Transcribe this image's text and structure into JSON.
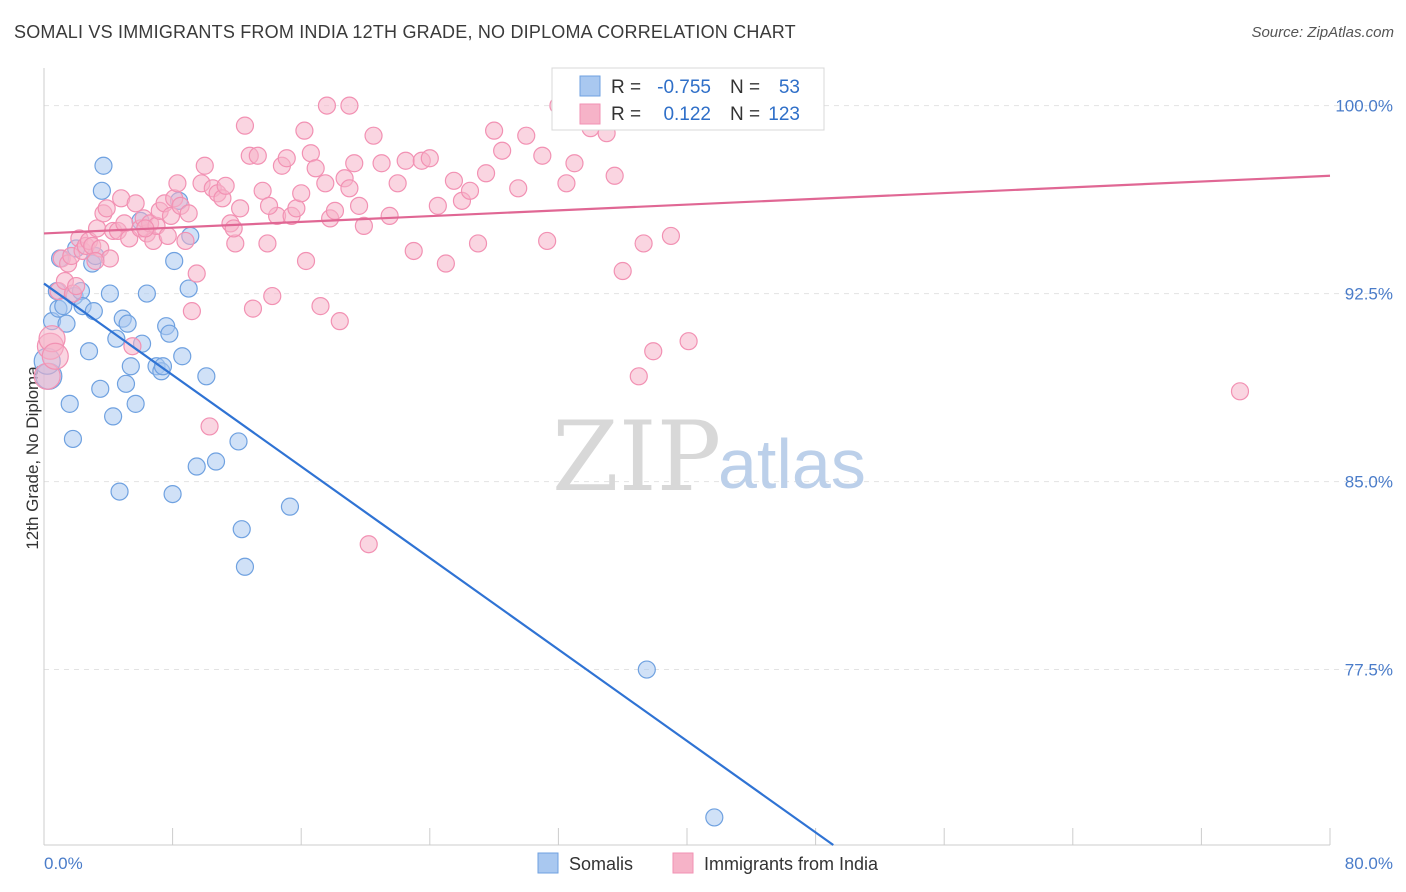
{
  "header": {
    "title": "SOMALI VS IMMIGRANTS FROM INDIA 12TH GRADE, NO DIPLOMA CORRELATION CHART",
    "source": "Source: ZipAtlas.com"
  },
  "watermark": {
    "zip": "ZIP",
    "atlas": "atlas"
  },
  "legend_box": {
    "rows": [
      {
        "r_label": "R =",
        "r_value": "-0.755",
        "n_label": "N =",
        "n_value": "53",
        "color": "#a9c8f0"
      },
      {
        "r_label": "R =",
        "r_value": "0.122",
        "n_label": "N =",
        "n_value": "123",
        "color": "#f6b3c8"
      }
    ]
  },
  "bottom_legend": [
    {
      "label": "Somalis",
      "color": "#a9c8f0"
    },
    {
      "label": "Immigrants from India",
      "color": "#f6b3c8"
    }
  ],
  "chart_data": {
    "type": "scatter",
    "title": "SOMALI VS IMMIGRANTS FROM INDIA 12TH GRADE, NO DIPLOMA CORRELATION CHART",
    "xlabel": "",
    "ylabel": "12th Grade, No Diploma",
    "xlim": [
      0,
      80
    ],
    "ylim": [
      70.5,
      101.5
    ],
    "x_tick_labels": [
      "0.0%",
      "80.0%"
    ],
    "y_ticks": [
      77.5,
      85.0,
      92.5,
      100.0
    ],
    "y_tick_labels": [
      "77.5%",
      "85.0%",
      "92.5%",
      "100.0%"
    ],
    "grid": true,
    "legend_placement": "top-center",
    "series": [
      {
        "name": "Somalis",
        "color": "#6fa1e0",
        "fill": "#a9c8f0",
        "trend": {
          "x": [
            0.0,
            49.1
          ],
          "y": [
            92.9,
            70.5
          ],
          "color": "#2f73d4"
        },
        "points": [
          [
            0.3,
            89.2
          ],
          [
            0.5,
            91.4
          ],
          [
            0.8,
            92.6
          ],
          [
            0.9,
            91.9
          ],
          [
            1.0,
            93.9
          ],
          [
            1.2,
            92.0
          ],
          [
            1.4,
            91.3
          ],
          [
            1.6,
            88.1
          ],
          [
            1.8,
            86.7
          ],
          [
            1.9,
            92.4
          ],
          [
            2.0,
            94.3
          ],
          [
            2.3,
            92.6
          ],
          [
            2.4,
            92.0
          ],
          [
            2.8,
            90.2
          ],
          [
            3.0,
            93.7
          ],
          [
            3.1,
            91.8
          ],
          [
            3.2,
            94.0
          ],
          [
            3.5,
            88.7
          ],
          [
            3.6,
            96.6
          ],
          [
            3.7,
            97.6
          ],
          [
            4.1,
            92.5
          ],
          [
            4.3,
            87.6
          ],
          [
            4.5,
            90.7
          ],
          [
            4.7,
            84.6
          ],
          [
            4.9,
            91.5
          ],
          [
            5.1,
            88.9
          ],
          [
            5.2,
            91.3
          ],
          [
            5.4,
            89.6
          ],
          [
            5.7,
            88.1
          ],
          [
            6.0,
            95.4
          ],
          [
            6.1,
            90.5
          ],
          [
            6.4,
            92.5
          ],
          [
            7.0,
            89.6
          ],
          [
            7.3,
            89.4
          ],
          [
            7.4,
            89.6
          ],
          [
            7.6,
            91.2
          ],
          [
            7.8,
            90.9
          ],
          [
            8.0,
            84.5
          ],
          [
            8.1,
            93.8
          ],
          [
            8.4,
            96.2
          ],
          [
            8.6,
            90.0
          ],
          [
            9.0,
            92.7
          ],
          [
            9.1,
            94.8
          ],
          [
            9.5,
            85.6
          ],
          [
            10.1,
            89.2
          ],
          [
            10.7,
            85.8
          ],
          [
            12.1,
            86.6
          ],
          [
            12.3,
            83.1
          ],
          [
            12.5,
            81.6
          ],
          [
            15.3,
            84.0
          ],
          [
            37.5,
            77.5
          ],
          [
            41.7,
            71.6
          ],
          [
            0.2,
            89.8
          ]
        ]
      },
      {
        "name": "Immigrants from India",
        "color": "#f291b3",
        "fill": "#f6b3c8",
        "trend": {
          "x": [
            0.0,
            80.0
          ],
          "y": [
            94.9,
            97.2
          ],
          "color": "#e06794"
        },
        "points": [
          [
            0.2,
            89.2
          ],
          [
            0.4,
            90.4
          ],
          [
            0.5,
            90.7
          ],
          [
            0.7,
            90.0
          ],
          [
            0.9,
            92.6
          ],
          [
            1.1,
            93.9
          ],
          [
            1.3,
            93.0
          ],
          [
            1.5,
            93.7
          ],
          [
            1.7,
            94.0
          ],
          [
            1.8,
            92.5
          ],
          [
            2.0,
            92.8
          ],
          [
            2.2,
            94.7
          ],
          [
            2.4,
            94.2
          ],
          [
            2.6,
            94.4
          ],
          [
            2.8,
            94.6
          ],
          [
            3.0,
            94.4
          ],
          [
            3.3,
            95.1
          ],
          [
            3.5,
            94.3
          ],
          [
            3.7,
            95.7
          ],
          [
            3.9,
            95.9
          ],
          [
            4.1,
            93.9
          ],
          [
            4.3,
            95.0
          ],
          [
            4.6,
            95.0
          ],
          [
            4.8,
            96.3
          ],
          [
            5.0,
            95.3
          ],
          [
            5.3,
            94.7
          ],
          [
            5.5,
            90.4
          ],
          [
            5.7,
            96.1
          ],
          [
            6.0,
            95.1
          ],
          [
            6.2,
            95.5
          ],
          [
            6.4,
            94.9
          ],
          [
            6.6,
            95.3
          ],
          [
            6.8,
            94.6
          ],
          [
            7.0,
            95.2
          ],
          [
            7.2,
            95.8
          ],
          [
            7.5,
            96.1
          ],
          [
            7.7,
            94.8
          ],
          [
            7.9,
            95.6
          ],
          [
            8.1,
            96.3
          ],
          [
            8.3,
            96.9
          ],
          [
            8.5,
            96.0
          ],
          [
            8.8,
            94.6
          ],
          [
            9.0,
            95.7
          ],
          [
            9.2,
            91.8
          ],
          [
            9.5,
            93.3
          ],
          [
            9.8,
            96.9
          ],
          [
            10.0,
            97.6
          ],
          [
            10.3,
            87.2
          ],
          [
            10.5,
            96.7
          ],
          [
            10.8,
            96.5
          ],
          [
            11.1,
            96.3
          ],
          [
            11.3,
            96.8
          ],
          [
            11.6,
            95.3
          ],
          [
            11.9,
            94.5
          ],
          [
            12.2,
            95.9
          ],
          [
            12.5,
            99.2
          ],
          [
            12.8,
            98.0
          ],
          [
            13.0,
            91.9
          ],
          [
            13.3,
            98.0
          ],
          [
            13.6,
            96.6
          ],
          [
            13.9,
            94.5
          ],
          [
            14.2,
            92.4
          ],
          [
            14.5,
            95.6
          ],
          [
            14.8,
            97.6
          ],
          [
            15.1,
            97.9
          ],
          [
            15.4,
            95.6
          ],
          [
            15.7,
            95.9
          ],
          [
            16.0,
            96.5
          ],
          [
            16.3,
            93.8
          ],
          [
            16.6,
            98.1
          ],
          [
            16.9,
            97.5
          ],
          [
            17.2,
            92.0
          ],
          [
            17.5,
            96.9
          ],
          [
            17.8,
            95.5
          ],
          [
            18.1,
            95.8
          ],
          [
            18.4,
            91.4
          ],
          [
            18.7,
            97.1
          ],
          [
            19.0,
            96.7
          ],
          [
            19.3,
            97.7
          ],
          [
            19.6,
            96.0
          ],
          [
            19.9,
            95.2
          ],
          [
            20.2,
            82.5
          ],
          [
            20.5,
            98.8
          ],
          [
            21.0,
            97.7
          ],
          [
            21.5,
            95.6
          ],
          [
            22.0,
            96.9
          ],
          [
            22.5,
            97.8
          ],
          [
            23.0,
            94.2
          ],
          [
            23.5,
            97.8
          ],
          [
            24.0,
            97.9
          ],
          [
            24.5,
            96.0
          ],
          [
            25.0,
            93.7
          ],
          [
            25.5,
            97.0
          ],
          [
            26.0,
            96.2
          ],
          [
            26.5,
            96.6
          ],
          [
            27.0,
            94.5
          ],
          [
            27.5,
            97.3
          ],
          [
            28.0,
            99.0
          ],
          [
            28.5,
            98.2
          ],
          [
            29.5,
            96.7
          ],
          [
            30.0,
            98.8
          ],
          [
            31.0,
            98.0
          ],
          [
            31.3,
            94.6
          ],
          [
            32.0,
            100.0
          ],
          [
            32.5,
            96.9
          ],
          [
            33.0,
            97.7
          ],
          [
            34.0,
            99.1
          ],
          [
            35.0,
            98.9
          ],
          [
            35.5,
            97.2
          ],
          [
            36.0,
            93.4
          ],
          [
            37.0,
            89.2
          ],
          [
            37.3,
            94.5
          ],
          [
            37.9,
            90.2
          ],
          [
            39.0,
            94.8
          ],
          [
            40.1,
            90.6
          ],
          [
            16.2,
            99.0
          ],
          [
            17.6,
            100.0
          ],
          [
            19.0,
            100.0
          ],
          [
            11.8,
            95.1
          ],
          [
            6.3,
            95.1
          ],
          [
            74.4,
            88.6
          ],
          [
            3.2,
            93.8
          ],
          [
            14.0,
            96.0
          ]
        ]
      }
    ]
  }
}
